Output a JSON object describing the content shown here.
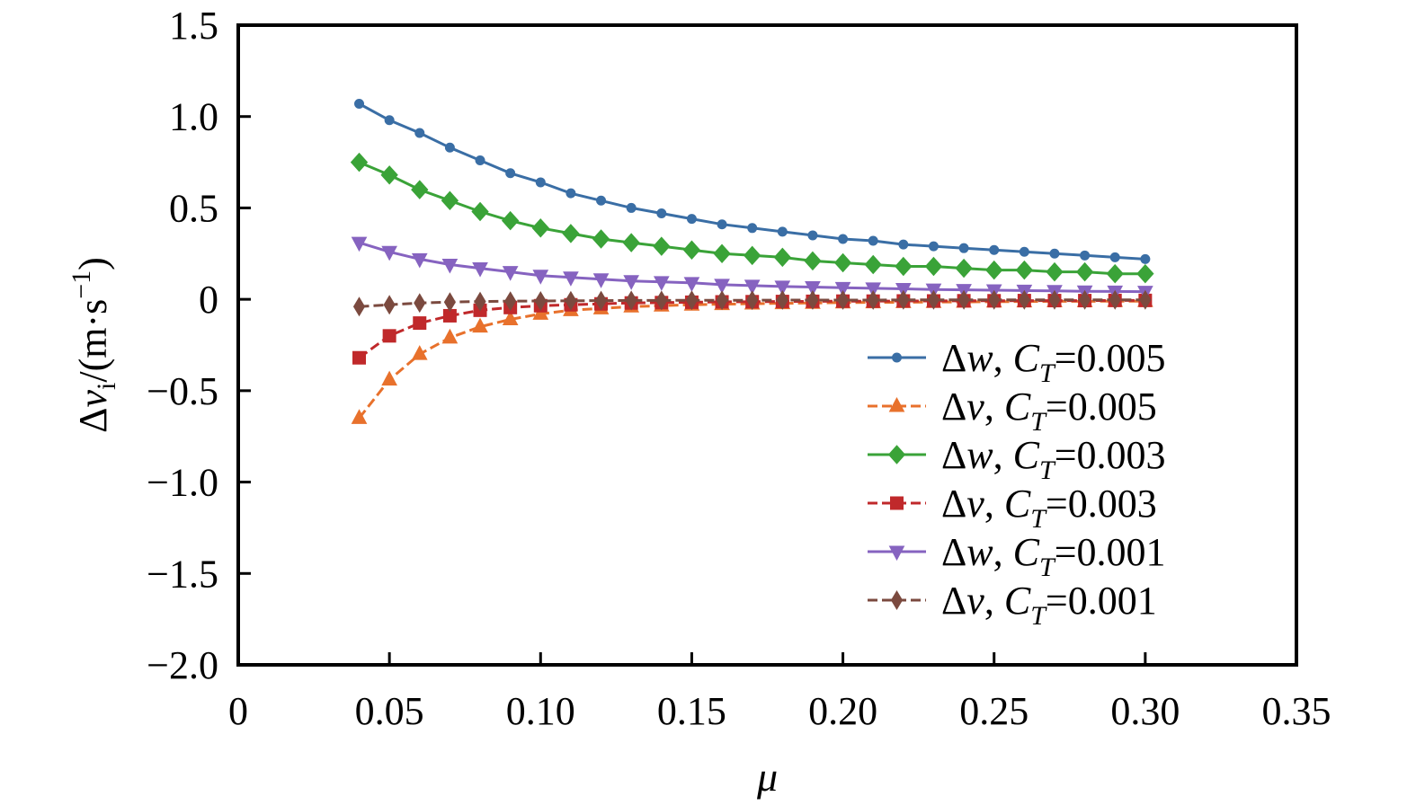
{
  "chart_data": {
    "type": "line",
    "xlabel": "μ",
    "ylabel": {
      "prefix": "Δ",
      "var": "v",
      "sub": "i",
      "unit_open": "/(m·s",
      "unit_sup": "−1",
      "unit_close": ")"
    },
    "xlim": [
      0,
      0.35
    ],
    "ylim": [
      -2.0,
      1.5
    ],
    "xticks": [
      {
        "v": 0,
        "label": "0"
      },
      {
        "v": 0.05,
        "label": "0.05"
      },
      {
        "v": 0.1,
        "label": "0.10"
      },
      {
        "v": 0.15,
        "label": "0.15"
      },
      {
        "v": 0.2,
        "label": "0.20"
      },
      {
        "v": 0.25,
        "label": "0.25"
      },
      {
        "v": 0.3,
        "label": "0.30"
      },
      {
        "v": 0.35,
        "label": "0.35"
      }
    ],
    "yticks": [
      {
        "v": 1.5,
        "label": "1.5"
      },
      {
        "v": 1.0,
        "label": "1.0"
      },
      {
        "v": 0.5,
        "label": "0.5"
      },
      {
        "v": 0,
        "label": "0"
      },
      {
        "v": -0.5,
        "label": "−0.5"
      },
      {
        "v": -1.0,
        "label": "−1.0"
      },
      {
        "v": -1.5,
        "label": "−1.5"
      },
      {
        "v": -2.0,
        "label": "−2.0"
      }
    ],
    "x": [
      0.04,
      0.05,
      0.06,
      0.07,
      0.08,
      0.09,
      0.1,
      0.11,
      0.12,
      0.13,
      0.14,
      0.15,
      0.16,
      0.17,
      0.18,
      0.19,
      0.2,
      0.21,
      0.22,
      0.23,
      0.24,
      0.25,
      0.26,
      0.27,
      0.28,
      0.29,
      0.3
    ],
    "legend_position": "lower-right",
    "series": [
      {
        "name": "Δw, CT=0.005",
        "legend": {
          "a": "Δ",
          "v": "w",
          "b": ", ",
          "c": "C",
          "sub": "T",
          "d": "=0.005"
        },
        "color": "#3a6ea5",
        "marker": "circle",
        "dashed": false,
        "values": [
          1.07,
          0.98,
          0.91,
          0.83,
          0.76,
          0.69,
          0.64,
          0.58,
          0.54,
          0.5,
          0.47,
          0.44,
          0.41,
          0.39,
          0.37,
          0.35,
          0.33,
          0.32,
          0.3,
          0.29,
          0.28,
          0.27,
          0.26,
          0.25,
          0.24,
          0.23,
          0.22
        ]
      },
      {
        "name": "Δv, CT=0.005",
        "legend": {
          "a": "Δ",
          "v": "v",
          "b": ", ",
          "c": "C",
          "sub": "T",
          "d": "=0.005"
        },
        "color": "#e8712c",
        "marker": "triangle-up",
        "dashed": true,
        "values": [
          -0.65,
          -0.44,
          -0.3,
          -0.21,
          -0.15,
          -0.11,
          -0.08,
          -0.06,
          -0.05,
          -0.04,
          -0.035,
          -0.03,
          -0.027,
          -0.024,
          -0.022,
          -0.02,
          -0.018,
          -0.017,
          -0.016,
          -0.015,
          -0.014,
          -0.013,
          -0.012,
          -0.011,
          -0.011,
          -0.01,
          -0.01
        ]
      },
      {
        "name": "Δw, CT=0.003",
        "legend": {
          "a": "Δ",
          "v": "w",
          "b": ", ",
          "c": "C",
          "sub": "T",
          "d": "=0.003"
        },
        "color": "#3aa338",
        "marker": "diamond",
        "dashed": false,
        "values": [
          0.75,
          0.68,
          0.6,
          0.54,
          0.48,
          0.43,
          0.39,
          0.36,
          0.33,
          0.31,
          0.29,
          0.27,
          0.25,
          0.24,
          0.23,
          0.21,
          0.2,
          0.19,
          0.18,
          0.18,
          0.17,
          0.16,
          0.16,
          0.15,
          0.15,
          0.14,
          0.14
        ]
      },
      {
        "name": "Δv, CT=0.003",
        "legend": {
          "a": "Δ",
          "v": "v",
          "b": ", ",
          "c": "C",
          "sub": "T",
          "d": "=0.003"
        },
        "color": "#c0292b",
        "marker": "square",
        "dashed": true,
        "values": [
          -0.32,
          -0.2,
          -0.13,
          -0.09,
          -0.06,
          -0.045,
          -0.035,
          -0.03,
          -0.025,
          -0.02,
          -0.018,
          -0.016,
          -0.014,
          -0.013,
          -0.012,
          -0.011,
          -0.01,
          -0.01,
          -0.009,
          -0.009,
          -0.008,
          -0.008,
          -0.007,
          -0.007,
          -0.007,
          -0.006,
          -0.006
        ]
      },
      {
        "name": "Δw, CT=0.001",
        "legend": {
          "a": "Δ",
          "v": "w",
          "b": ", ",
          "c": "C",
          "sub": "T",
          "d": "=0.001"
        },
        "color": "#8663c0",
        "marker": "triangle-down",
        "dashed": false,
        "values": [
          0.31,
          0.26,
          0.22,
          0.19,
          0.17,
          0.15,
          0.13,
          0.12,
          0.11,
          0.1,
          0.095,
          0.09,
          0.08,
          0.075,
          0.07,
          0.067,
          0.063,
          0.06,
          0.057,
          0.054,
          0.052,
          0.05,
          0.048,
          0.046,
          0.044,
          0.043,
          0.042
        ]
      },
      {
        "name": "Δv, CT=0.001",
        "legend": {
          "a": "Δ",
          "v": "v",
          "b": ", ",
          "c": "C",
          "sub": "T",
          "d": "=0.001"
        },
        "color": "#7b4a3f",
        "marker": "thin-diamond",
        "dashed": true,
        "values": [
          -0.04,
          -0.03,
          -0.02,
          -0.015,
          -0.012,
          -0.01,
          -0.009,
          -0.008,
          -0.007,
          -0.006,
          -0.006,
          -0.005,
          -0.005,
          -0.005,
          -0.004,
          -0.004,
          -0.004,
          -0.004,
          -0.003,
          -0.003,
          -0.003,
          -0.003,
          -0.003,
          -0.003,
          -0.003,
          -0.003,
          -0.003
        ]
      }
    ]
  }
}
